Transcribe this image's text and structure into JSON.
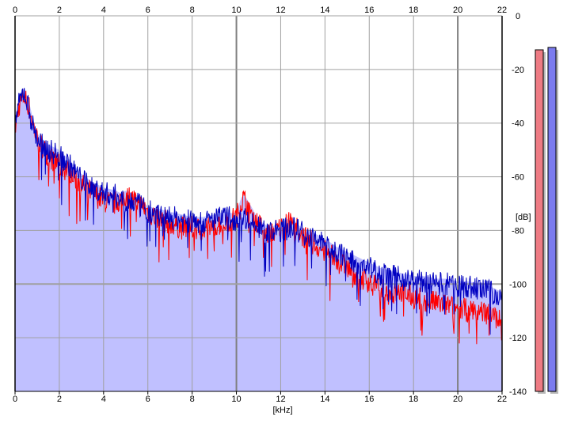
{
  "chart_data": {
    "type": "line",
    "title": "",
    "xlabel": "[kHz]",
    "ylabel": "[dB]",
    "xlim": [
      0,
      22
    ],
    "ylim": [
      -140,
      0
    ],
    "x_ticks": [
      0,
      2,
      4,
      6,
      8,
      10,
      12,
      14,
      16,
      18,
      20,
      22
    ],
    "y_ticks": [
      0,
      -20,
      -40,
      -60,
      -80,
      -100,
      -120,
      -140
    ],
    "grid": true,
    "series": [
      {
        "color": "#ff0000",
        "x": [
          0,
          0.2,
          0.4,
          0.6,
          0.8,
          1.0,
          1.5,
          2.0,
          2.5,
          3.0,
          3.5,
          4.0,
          4.5,
          5.0,
          5.5,
          6.0,
          6.5,
          7.0,
          7.5,
          8.0,
          8.5,
          9.0,
          9.5,
          10.0,
          10.3,
          10.6,
          11.0,
          11.5,
          12.0,
          12.5,
          13.0,
          13.5,
          14.0,
          14.5,
          15.0,
          15.5,
          16.0,
          16.5,
          17.0,
          17.5,
          18.0,
          18.5,
          19.0,
          19.5,
          20.0,
          20.5,
          21.0,
          21.5,
          22.0
        ],
        "y": [
          -42,
          -33,
          -30,
          -33,
          -40,
          -46,
          -52,
          -56,
          -58,
          -63,
          -66,
          -69,
          -70,
          -67,
          -69,
          -73,
          -76,
          -77,
          -79,
          -79,
          -80,
          -78,
          -77,
          -75,
          -68,
          -72,
          -78,
          -81,
          -79,
          -77,
          -82,
          -85,
          -88,
          -91,
          -94,
          -97,
          -99,
          -102,
          -104,
          -103,
          -105,
          -106,
          -107,
          -108,
          -109,
          -110,
          -110,
          -111,
          -114
        ]
      },
      {
        "color": "#0000c0",
        "x": [
          0,
          0.2,
          0.4,
          0.6,
          0.8,
          1.0,
          1.5,
          2.0,
          2.5,
          3.0,
          3.5,
          4.0,
          4.5,
          5.0,
          5.5,
          6.0,
          6.5,
          7.0,
          7.5,
          8.0,
          8.5,
          9.0,
          9.5,
          10.0,
          10.3,
          10.6,
          11.0,
          11.5,
          12.0,
          12.5,
          13.0,
          13.5,
          14.0,
          14.5,
          15.0,
          15.5,
          16.0,
          16.5,
          17.0,
          17.5,
          18.0,
          18.5,
          19.0,
          19.5,
          20.0,
          20.5,
          21.0,
          21.5,
          22.0
        ],
        "y": [
          -40,
          -32,
          -28,
          -34,
          -41,
          -46,
          -50,
          -52,
          -56,
          -61,
          -64,
          -66,
          -67,
          -69,
          -70,
          -73,
          -74,
          -75,
          -76,
          -77,
          -77,
          -76,
          -75,
          -76,
          -74,
          -77,
          -79,
          -81,
          -80,
          -79,
          -81,
          -83,
          -85,
          -88,
          -90,
          -92,
          -94,
          -96,
          -97,
          -98,
          -99,
          -99,
          -100,
          -100,
          -101,
          -101,
          -102,
          -103,
          -105
        ]
      }
    ],
    "meters": [
      {
        "channel": "left",
        "color": "#ee7b84"
      },
      {
        "channel": "right",
        "color": "#7b7bee"
      }
    ]
  },
  "colors": {
    "background": "#ffffff",
    "fill": "#c0c0ff",
    "grid": "#a0a0a0",
    "axis": "#000000"
  }
}
